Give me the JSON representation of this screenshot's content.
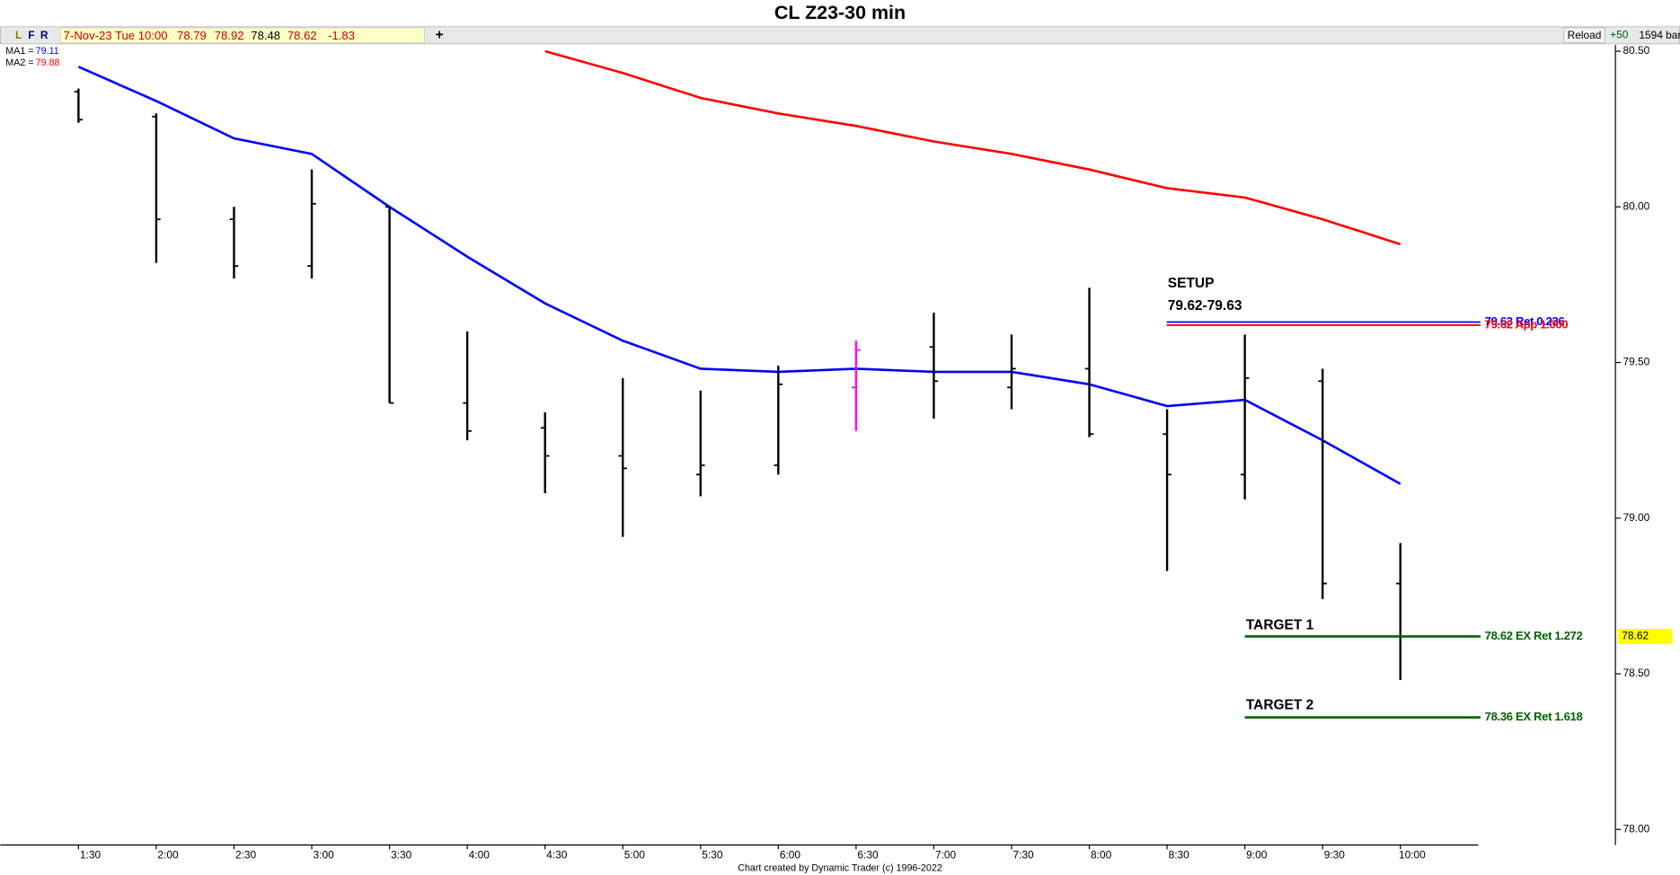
{
  "chart_data": {
    "type": "ohlc",
    "title": "CL Z23-30 min",
    "toolbar": {
      "buttons": [
        "L",
        "F",
        "R"
      ],
      "plus": "+",
      "reload": "Reload",
      "bars_step": "+50",
      "bar_count": "1594 bar"
    },
    "quote": {
      "datetime": "7-Nov-23 Tue 10:00",
      "open": 78.79,
      "high": 78.92,
      "low": 78.48,
      "close": 78.62,
      "change": -1.83
    },
    "categories": [
      "1:30",
      "2:00",
      "2:30",
      "3:00",
      "3:30",
      "4:00",
      "4:30",
      "5:00",
      "5:30",
      "6:00",
      "6:30",
      "7:00",
      "7:30",
      "8:00",
      "8:30",
      "9:00",
      "9:30",
      "10:00"
    ],
    "open": [
      80.37,
      80.29,
      79.96,
      79.81,
      80.0,
      79.37,
      79.29,
      79.2,
      79.14,
      79.17,
      79.42,
      79.55,
      79.42,
      79.48,
      79.27,
      79.14,
      79.44,
      78.79
    ],
    "high": [
      80.38,
      80.3,
      80.0,
      80.12,
      80.0,
      79.6,
      79.34,
      79.45,
      79.41,
      79.49,
      79.57,
      79.66,
      79.59,
      79.74,
      79.35,
      79.59,
      79.48,
      78.92
    ],
    "low": [
      80.27,
      79.82,
      79.77,
      79.77,
      79.37,
      79.25,
      79.08,
      78.94,
      79.07,
      79.14,
      79.28,
      79.32,
      79.35,
      79.26,
      78.83,
      79.06,
      78.74,
      78.48
    ],
    "close": [
      80.28,
      79.96,
      79.81,
      80.01,
      79.37,
      79.28,
      79.2,
      79.16,
      79.17,
      79.43,
      79.54,
      79.44,
      79.48,
      79.27,
      79.14,
      79.45,
      78.79,
      78.62
    ],
    "bar_colors": [
      "#000000",
      "#000000",
      "#000000",
      "#000000",
      "#000000",
      "#000000",
      "#000000",
      "#000000",
      "#000000",
      "#000000",
      "#ff00ff",
      "#000000",
      "#000000",
      "#000000",
      "#000000",
      "#000000",
      "#000000",
      "#000000"
    ],
    "series": [
      {
        "name": "MA1 =",
        "color": "#0000ff",
        "current_value": 79.11,
        "values": [
          80.45,
          80.34,
          80.22,
          80.17,
          80.0,
          79.84,
          79.69,
          79.57,
          79.48,
          79.47,
          79.48,
          79.47,
          79.47,
          79.43,
          79.36,
          79.38,
          79.25,
          79.11
        ]
      },
      {
        "name": "MA2 =",
        "color": "#ff0000",
        "current_value": 79.88,
        "values": [
          null,
          null,
          null,
          null,
          null,
          null,
          80.5,
          80.43,
          80.35,
          80.3,
          80.26,
          80.21,
          80.17,
          80.12,
          80.06,
          80.03,
          79.96,
          79.88
        ]
      }
    ],
    "levels": [
      {
        "value": 79.63,
        "label": "79.63 Ret 0.236",
        "color": "#0000ff"
      },
      {
        "value": 79.62,
        "label": "79.62 App 1.000",
        "color": "#ff0000"
      },
      {
        "value": 78.62,
        "label": "78.62 EX Ret 1.272",
        "color": "#006400"
      },
      {
        "value": 78.36,
        "label": "78.36 EX Ret 1.618",
        "color": "#006400"
      }
    ],
    "annotations": {
      "setup": "SETUP",
      "setup_range": "79.62-79.63",
      "target1": "TARGET 1",
      "target2": "TARGET 2"
    },
    "last_price": 78.62,
    "ylim": [
      77.95,
      80.52
    ],
    "yticks": [
      {
        "value": 78,
        "label": "78.00"
      },
      {
        "value": 78.5,
        "label": "78.50"
      },
      {
        "value": 79,
        "label": "79.00"
      },
      {
        "value": 79.5,
        "label": "79.50"
      },
      {
        "value": 80,
        "label": "80.00"
      },
      {
        "value": 80.5,
        "label": "80.50"
      }
    ],
    "credit": "Chart created by Dynamic Trader  (c) 1996-2022"
  }
}
